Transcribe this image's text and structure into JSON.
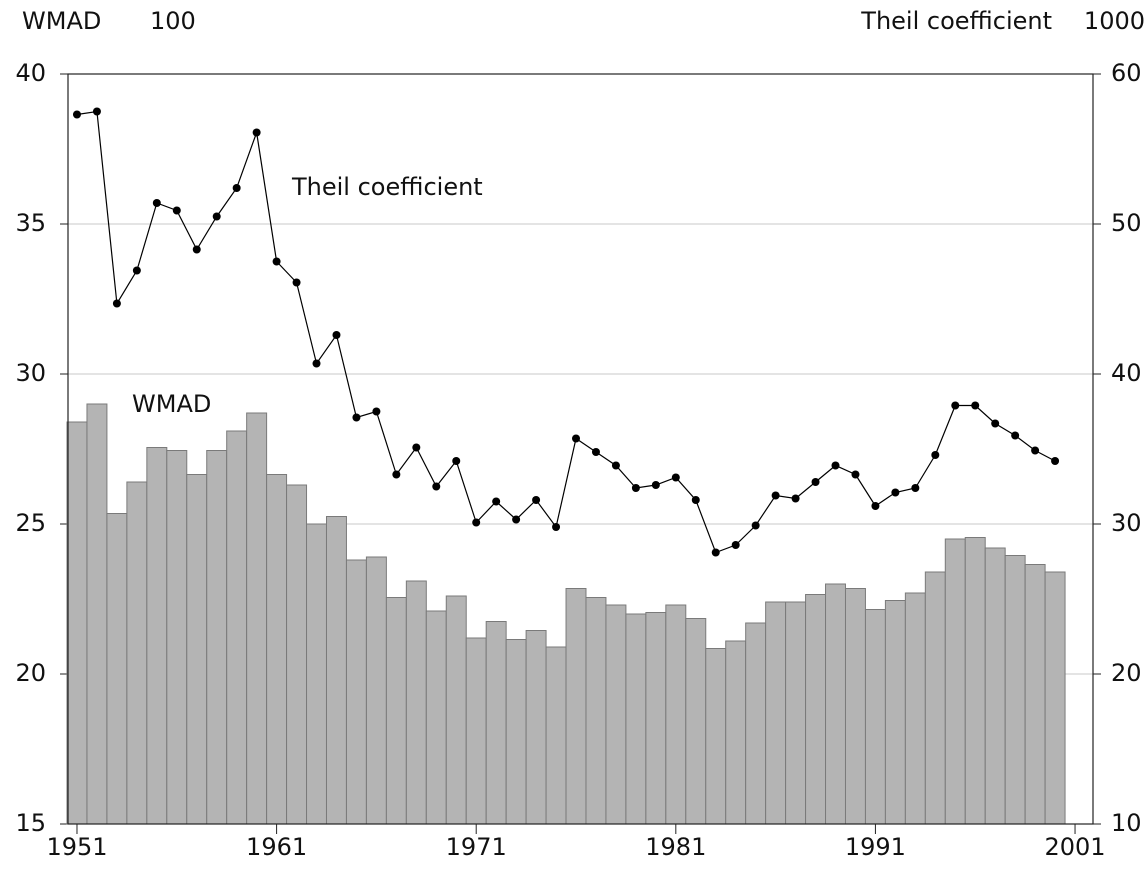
{
  "chart_data": {
    "type": "bar",
    "y_label": "WMAD",
    "y_scale": "100",
    "y2_label": "Theil coefficient",
    "y2_scale": "1000",
    "annotations": [
      "Theil coefficient",
      "WMAD"
    ],
    "x": [
      1951,
      1952,
      1953,
      1954,
      1955,
      1956,
      1957,
      1958,
      1959,
      1960,
      1961,
      1962,
      1963,
      1964,
      1965,
      1966,
      1967,
      1968,
      1969,
      1970,
      1971,
      1972,
      1973,
      1974,
      1975,
      1976,
      1977,
      1978,
      1979,
      1980,
      1981,
      1982,
      1983,
      1984,
      1985,
      1986,
      1987,
      1988,
      1989,
      1990,
      1991,
      1992,
      1993,
      1994,
      1995,
      1996,
      1997,
      1998,
      1999,
      2000
    ],
    "xlim": [
      1950.55,
      2001.9
    ],
    "xticks": [
      1951,
      1961,
      1971,
      1981,
      1991,
      2001
    ],
    "ylim": [
      15,
      40
    ],
    "yticks": [
      15,
      20,
      25,
      30,
      35,
      40
    ],
    "y2lim": [
      10,
      60
    ],
    "y2ticks": [
      10,
      20,
      30,
      40,
      50,
      60
    ],
    "grid": true,
    "series": [
      {
        "name": "WMAD",
        "type": "bar",
        "color": "#b4b4b4",
        "axis": "y",
        "values": [
          28.4,
          29.0,
          25.35,
          26.4,
          27.55,
          27.45,
          26.65,
          27.45,
          28.1,
          28.7,
          26.65,
          26.3,
          25.0,
          25.25,
          23.8,
          23.9,
          22.55,
          23.1,
          22.1,
          22.6,
          21.2,
          21.75,
          21.15,
          21.45,
          20.9,
          22.85,
          22.55,
          22.3,
          22.0,
          22.05,
          22.3,
          21.85,
          20.85,
          21.1,
          21.7,
          22.4,
          22.4,
          22.65,
          23.0,
          22.85,
          22.15,
          22.45,
          22.7,
          23.4,
          24.5,
          24.55,
          24.2,
          23.95,
          23.65,
          23.4
        ]
      },
      {
        "name": "Theil coefficient",
        "type": "line",
        "color": "#000000",
        "axis": "y2",
        "values": [
          57.3,
          57.5,
          44.7,
          46.9,
          51.4,
          50.9,
          48.3,
          50.5,
          52.4,
          56.1,
          47.5,
          46.1,
          40.7,
          42.6,
          37.1,
          37.5,
          33.3,
          35.1,
          32.5,
          34.2,
          30.1,
          31.5,
          30.3,
          31.6,
          29.8,
          35.7,
          34.8,
          33.9,
          32.4,
          32.6,
          33.1,
          31.6,
          28.1,
          28.6,
          29.9,
          31.9,
          31.7,
          32.8,
          33.9,
          33.3,
          31.2,
          32.1,
          32.4,
          34.6,
          37.9,
          37.9,
          36.7,
          35.9,
          34.9,
          34.2
        ]
      }
    ]
  }
}
